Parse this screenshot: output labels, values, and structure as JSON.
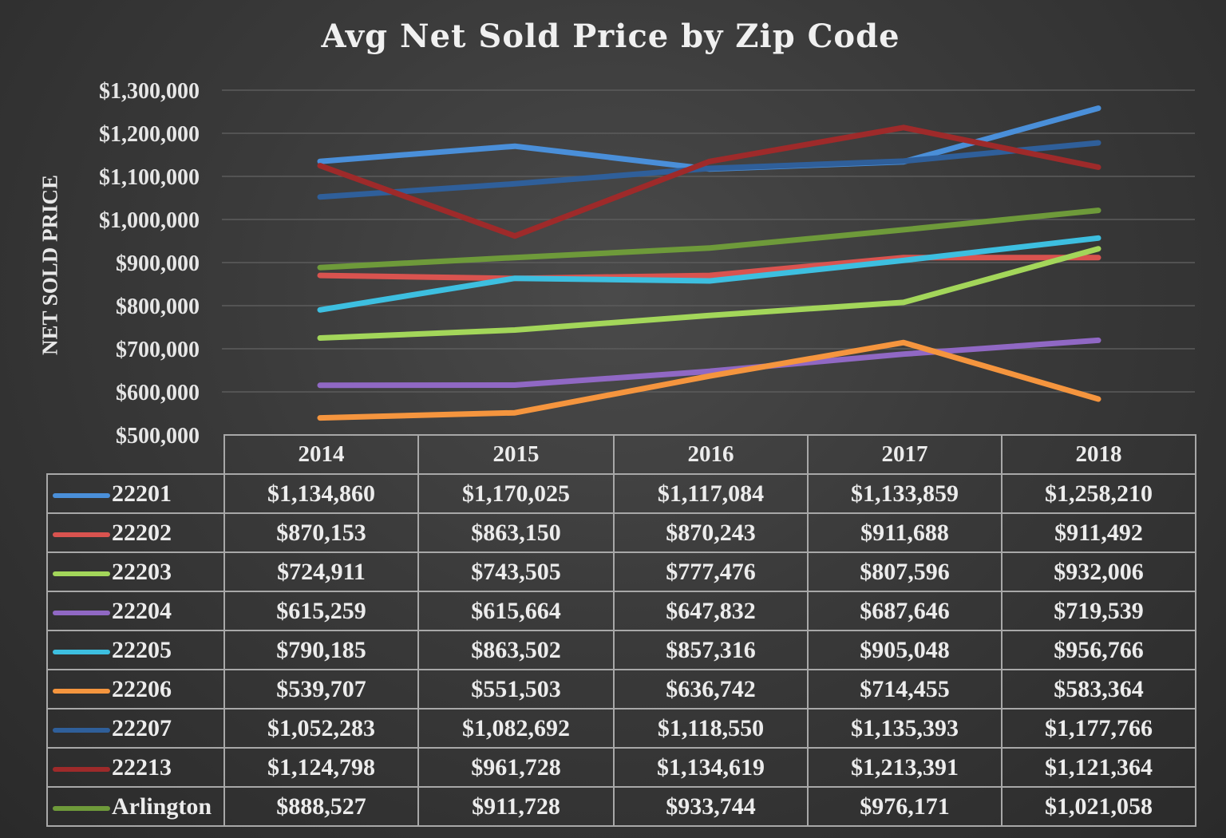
{
  "chart_data": {
    "type": "line",
    "title": "Avg Net Sold Price by Zip Code",
    "xlabel": "",
    "ylabel": "NET SOLD PRICE",
    "ylim": [
      500000,
      1300000
    ],
    "yticks": [
      500000,
      600000,
      700000,
      800000,
      900000,
      1000000,
      1100000,
      1200000,
      1300000
    ],
    "ytick_labels": [
      "$500,000",
      "$600,000",
      "$700,000",
      "$800,000",
      "$900,000",
      "$1,000,000",
      "$1,100,000",
      "$1,200,000",
      "$1,300,000"
    ],
    "grid": true,
    "legend": "data-table",
    "categories": [
      "2014",
      "2015",
      "2016",
      "2017",
      "2018"
    ],
    "series": [
      {
        "name": "22201",
        "color": "#4a8fd9",
        "values": [
          1134860,
          1170025,
          1117084,
          1133859,
          1258210
        ],
        "labels": [
          "$1,134,860",
          "$1,170,025",
          "$1,117,084",
          "$1,133,859",
          "$1,258,210"
        ]
      },
      {
        "name": "22202",
        "color": "#d9534f",
        "values": [
          870153,
          863150,
          870243,
          911688,
          911492
        ],
        "labels": [
          "$870,153",
          "$863,150",
          "$870,243",
          "$911,688",
          "$911,492"
        ]
      },
      {
        "name": "22203",
        "color": "#a3d65a",
        "values": [
          724911,
          743505,
          777476,
          807596,
          932006
        ],
        "labels": [
          "$724,911",
          "$743,505",
          "$777,476",
          "$807,596",
          "$932,006"
        ]
      },
      {
        "name": "22204",
        "color": "#9068c4",
        "values": [
          615259,
          615664,
          647832,
          687646,
          719539
        ],
        "labels": [
          "$615,259",
          "$615,664",
          "$647,832",
          "$687,646",
          "$719,539"
        ]
      },
      {
        "name": "22205",
        "color": "#3dbfe0",
        "values": [
          790185,
          863502,
          857316,
          905048,
          956766
        ],
        "labels": [
          "$790,185",
          "$863,502",
          "$857,316",
          "$905,048",
          "$956,766"
        ]
      },
      {
        "name": "22206",
        "color": "#f5953e",
        "values": [
          539707,
          551503,
          636742,
          714455,
          583364
        ],
        "labels": [
          "$539,707",
          "$551,503",
          "$636,742",
          "$714,455",
          "$583,364"
        ]
      },
      {
        "name": "22207",
        "color": "#2f5f9a",
        "values": [
          1052283,
          1082692,
          1118550,
          1135393,
          1177766
        ],
        "labels": [
          "$1,052,283",
          "$1,082,692",
          "$1,118,550",
          "$1,135,393",
          "$1,177,766"
        ]
      },
      {
        "name": "22213",
        "color": "#9e2a2a",
        "values": [
          1124798,
          961728,
          1134619,
          1213391,
          1121364
        ],
        "labels": [
          "$1,124,798",
          "$961,728",
          "$1,134,619",
          "$1,213,391",
          "$1,121,364"
        ]
      },
      {
        "name": "Arlington",
        "color": "#6e9a3a",
        "values": [
          888527,
          911728,
          933744,
          976171,
          1021058
        ],
        "labels": [
          "$888,527",
          "$911,728",
          "$933,744",
          "$976,171",
          "$1,021,058"
        ]
      }
    ]
  }
}
